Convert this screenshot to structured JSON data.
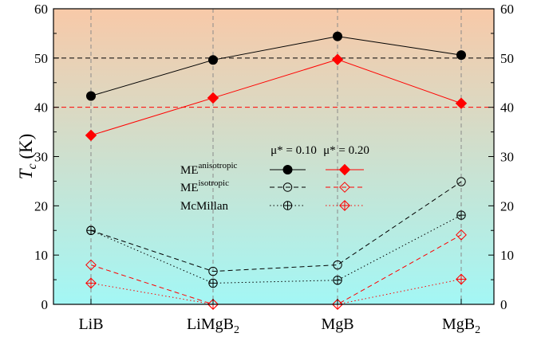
{
  "chart_data": {
    "type": "line",
    "categories": [
      "LiB",
      "LiMgB2",
      "MgB",
      "MgB2"
    ],
    "category_labels": [
      {
        "base": "LiB",
        "sub": ""
      },
      {
        "base": "LiMgB",
        "sub": "2"
      },
      {
        "base": "MgB",
        "sub": ""
      },
      {
        "base": "MgB",
        "sub": "2"
      }
    ],
    "ylabel": {
      "main": "T",
      "sub": "c",
      "unit": " (K)"
    },
    "ylim": [
      0,
      60
    ],
    "yticks": [
      0,
      10,
      20,
      30,
      40,
      50,
      60
    ],
    "right_axis_ticks": true,
    "reference_lines": [
      {
        "y": 50,
        "color": "#000000"
      },
      {
        "y": 40,
        "color": "#ff0000"
      }
    ],
    "series": [
      {
        "legend_row": 0,
        "mu_col": 0,
        "color": "#000000",
        "marker": "filled-circle",
        "dash": "solid",
        "values": [
          42.3,
          49.6,
          54.4,
          50.6
        ]
      },
      {
        "legend_row": 0,
        "mu_col": 1,
        "color": "#ff0000",
        "marker": "filled-diamond",
        "dash": "solid",
        "values": [
          34.3,
          41.9,
          49.7,
          40.8
        ]
      },
      {
        "legend_row": 1,
        "mu_col": 0,
        "color": "#000000",
        "marker": "open-circle",
        "dash": "dashed",
        "values": [
          15.0,
          6.7,
          8.0,
          24.9
        ]
      },
      {
        "legend_row": 1,
        "mu_col": 1,
        "color": "#ff0000",
        "marker": "open-diamond",
        "dash": "dashed",
        "values": [
          8.0,
          0.0,
          0.0,
          14.1
        ]
      },
      {
        "legend_row": 2,
        "mu_col": 0,
        "color": "#000000",
        "marker": "crossed-circle",
        "dash": "dotted",
        "values": [
          15.0,
          4.3,
          4.9,
          18.1
        ]
      },
      {
        "legend_row": 2,
        "mu_col": 1,
        "color": "#ff0000",
        "marker": "crossed-diamond",
        "dash": "dotted",
        "values": [
          4.3,
          0.0,
          0.0,
          5.1
        ]
      }
    ],
    "legend": {
      "rows": [
        {
          "base": "ME",
          "sup": "anisotropic"
        },
        {
          "base": "ME",
          "sup": "isotropic"
        },
        {
          "base": "McMillan",
          "sup": ""
        }
      ],
      "columns": [
        "μ* = 0.10",
        "μ* = 0.20"
      ]
    },
    "background_gradient": [
      "#f8c9a8",
      "#a3f7f5"
    ]
  }
}
